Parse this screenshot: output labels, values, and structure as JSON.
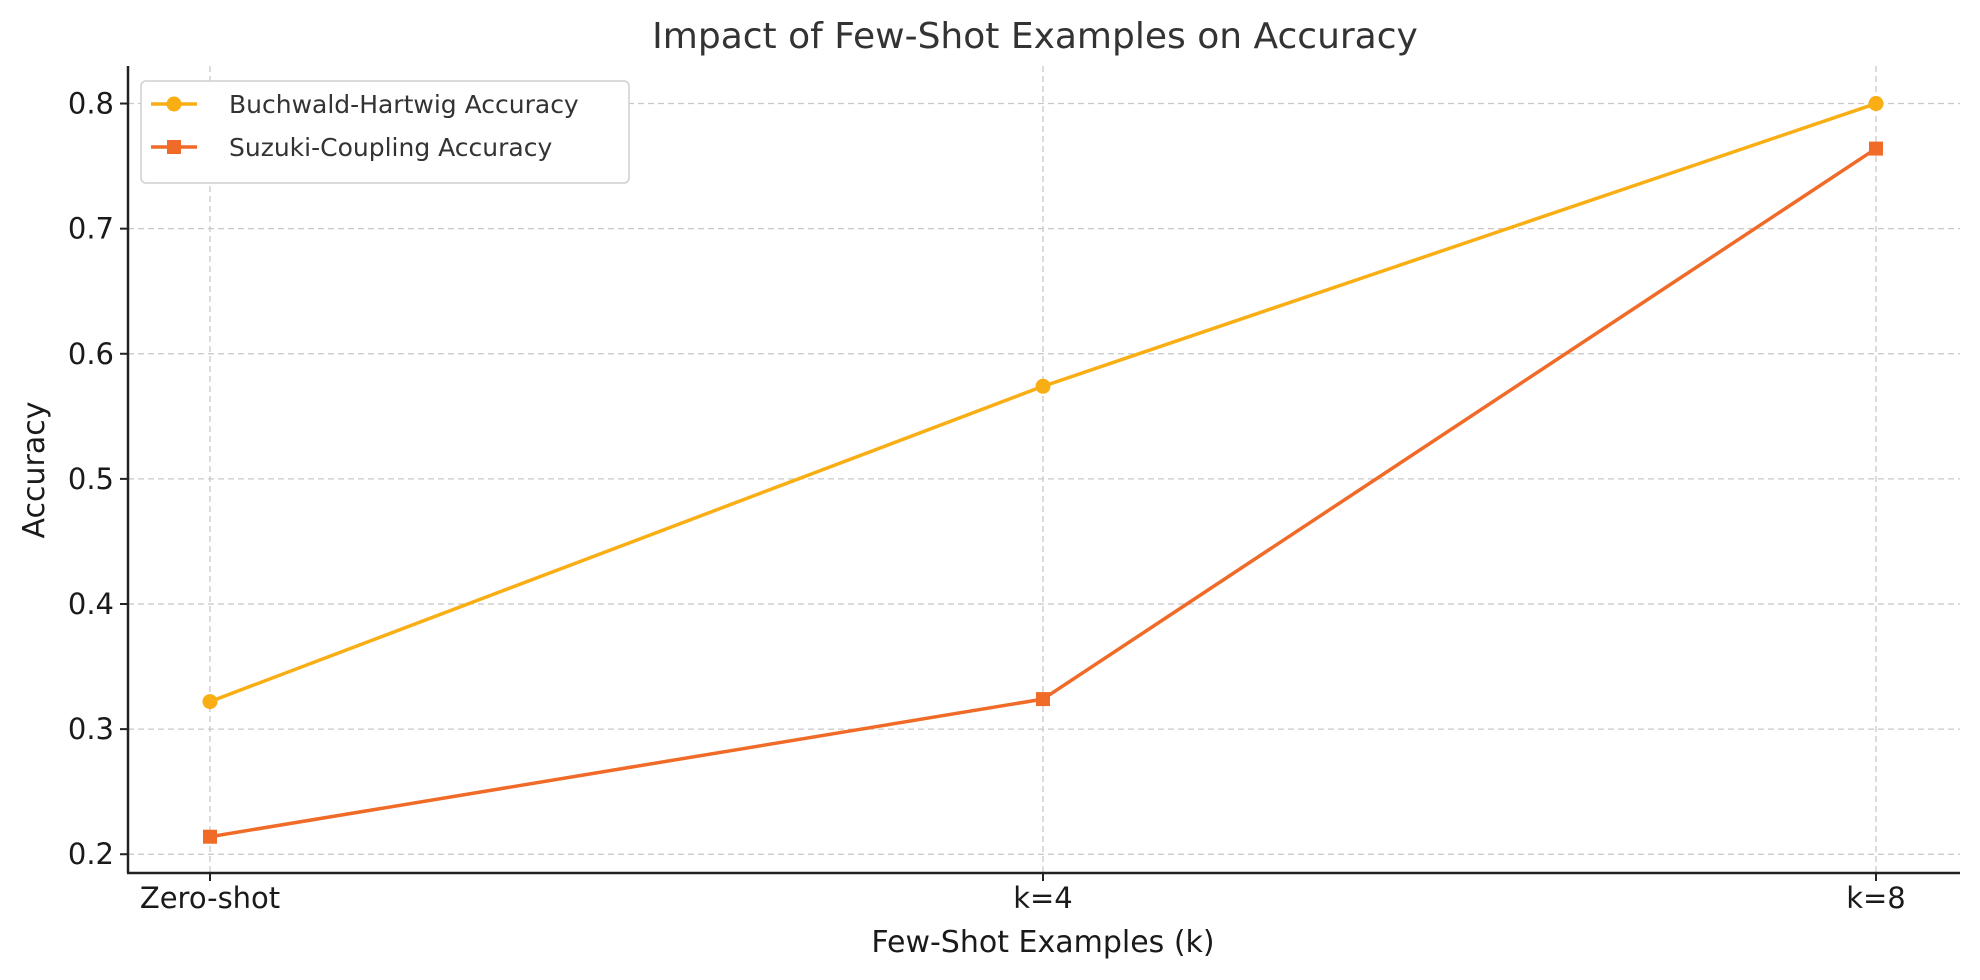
{
  "chart_data": {
    "type": "line",
    "title": "Impact of Few-Shot Examples on Accuracy",
    "xlabel": "Few-Shot Examples (k)",
    "ylabel": "Accuracy",
    "categories": [
      "Zero-shot",
      "k=4",
      "k=8"
    ],
    "ylim": [
      0.185,
      0.83
    ],
    "yticks": [
      0.2,
      0.3,
      0.4,
      0.5,
      0.6,
      0.7,
      0.8
    ],
    "grid": true,
    "legend_position": "top-left",
    "series": [
      {
        "name": "Buchwald-Hartwig Accuracy",
        "values": [
          0.322,
          0.574,
          0.8
        ],
        "color": "#F9AE14",
        "marker": "circle"
      },
      {
        "name": "Suzuki-Coupling Accuracy",
        "values": [
          0.214,
          0.324,
          0.764
        ],
        "color": "#F06A28",
        "marker": "square"
      }
    ]
  }
}
